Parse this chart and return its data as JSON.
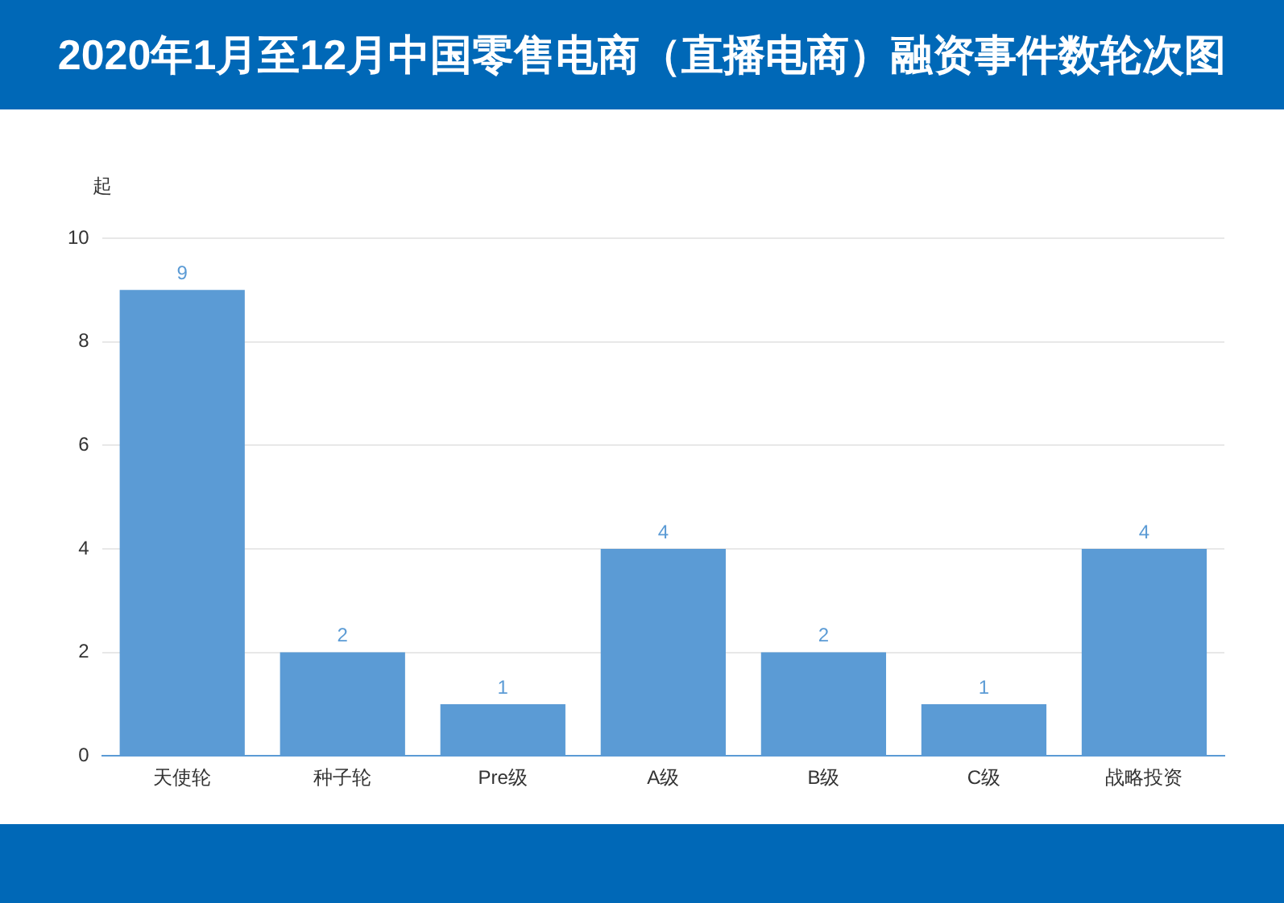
{
  "chart_data": {
    "type": "bar",
    "title": "2020年1月至12月中国零售电商（直播电商）融资事件数轮次图",
    "ylabel": "起",
    "categories": [
      "天使轮",
      "种子轮",
      "Pre级",
      "A级",
      "B级",
      "C级",
      "战略投资"
    ],
    "values": [
      9,
      2,
      1,
      4,
      2,
      1,
      4
    ],
    "color": "#5b9bd5",
    "ylim": [
      0,
      10
    ],
    "yticks": [
      0,
      2,
      4,
      6,
      8,
      10
    ],
    "grid": "y",
    "data_labels": true
  }
}
